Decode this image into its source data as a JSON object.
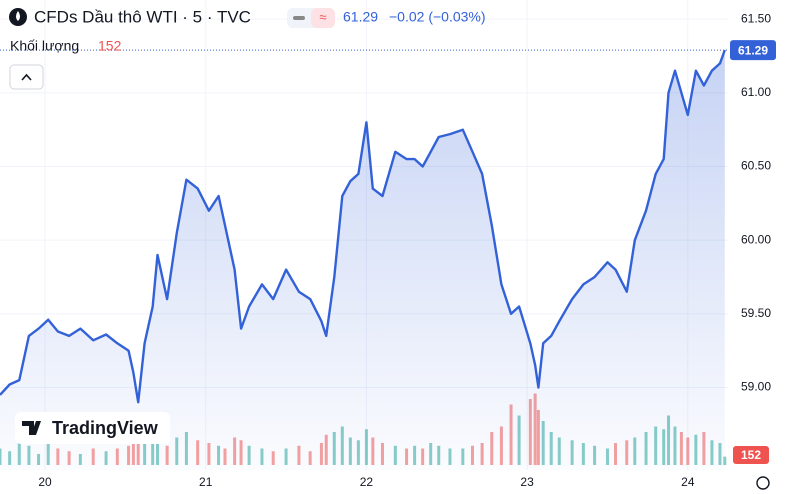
{
  "header": {
    "title": "CFDs Dầu thô WTI · 5 · TVC",
    "price": 61.29,
    "change": "−0.02 (−0.03%)",
    "volume_label": "Khối lượng",
    "volume": 152
  },
  "logo": "TradingView",
  "chart_data": {
    "type": "area",
    "x": [
      19.72,
      19.78,
      19.84,
      19.9,
      19.96,
      20.02,
      20.08,
      20.15,
      20.22,
      20.3,
      20.38,
      20.45,
      20.52,
      20.55,
      20.58,
      20.62,
      20.67,
      20.7,
      20.76,
      20.82,
      20.88,
      20.95,
      21.02,
      21.08,
      21.12,
      21.18,
      21.22,
      21.27,
      21.35,
      21.42,
      21.5,
      21.58,
      21.65,
      21.72,
      21.75,
      21.8,
      21.85,
      21.9,
      21.95,
      22.0,
      22.04,
      22.1,
      22.18,
      22.25,
      22.3,
      22.35,
      22.4,
      22.45,
      22.52,
      22.6,
      22.66,
      22.72,
      22.78,
      22.84,
      22.9,
      22.95,
      23.02,
      23.05,
      23.07,
      23.1,
      23.15,
      23.2,
      23.28,
      23.35,
      23.42,
      23.5,
      23.55,
      23.62,
      23.67,
      23.74,
      23.8,
      23.85,
      23.88,
      23.92,
      23.96,
      24.0,
      24.05,
      24.1,
      24.15,
      24.2,
      24.23
    ],
    "series": [
      {
        "color": "#3361d8",
        "values": [
          58.95,
          59.02,
          59.05,
          59.35,
          59.4,
          59.46,
          59.38,
          59.35,
          59.4,
          59.32,
          59.36,
          59.3,
          59.25,
          59.1,
          58.9,
          59.3,
          59.55,
          59.9,
          59.6,
          60.05,
          60.41,
          60.35,
          60.2,
          60.3,
          60.1,
          59.8,
          59.4,
          59.55,
          59.7,
          59.6,
          59.8,
          59.65,
          59.6,
          59.45,
          59.35,
          59.75,
          60.3,
          60.4,
          60.45,
          60.8,
          60.35,
          60.3,
          60.6,
          60.55,
          60.55,
          60.5,
          60.6,
          60.7,
          60.72,
          60.75,
          60.6,
          60.45,
          60.1,
          59.7,
          59.5,
          59.55,
          59.3,
          59.15,
          59.0,
          59.3,
          59.35,
          59.45,
          59.6,
          59.7,
          59.75,
          59.85,
          59.8,
          59.65,
          60.0,
          60.2,
          60.45,
          60.55,
          61.0,
          61.15,
          61.0,
          60.85,
          61.15,
          61.05,
          61.15,
          61.2,
          61.29
        ]
      }
    ],
    "volume": {
      "values": [
        300,
        250,
        400,
        350,
        200,
        450,
        300,
        250,
        200,
        300,
        250,
        300,
        350,
        400,
        600,
        500,
        450,
        700,
        350,
        500,
        600,
        450,
        400,
        350,
        300,
        500,
        450,
        350,
        300,
        250,
        300,
        350,
        250,
        400,
        550,
        600,
        700,
        500,
        450,
        650,
        500,
        400,
        350,
        300,
        350,
        300,
        400,
        350,
        300,
        300,
        350,
        400,
        600,
        700,
        1100,
        900,
        1200,
        1300,
        1000,
        800,
        600,
        500,
        450,
        400,
        350,
        300,
        400,
        450,
        500,
        600,
        700,
        650,
        900,
        700,
        600,
        500,
        550,
        600,
        450,
        400,
        152
      ],
      "ylim": [
        0,
        2000
      ],
      "up_color": "#26a69a",
      "down_color": "#ef5350"
    },
    "xlim": [
      19.72,
      24.25
    ],
    "xticks": [
      20,
      21,
      22,
      23,
      24
    ],
    "ylim": [
      58.44,
      61.63
    ],
    "yticks": [
      {
        "value": 59,
        "label": "59.00"
      },
      {
        "value": 59.5,
        "label": "59.50"
      },
      {
        "value": 60,
        "label": "60.00"
      },
      {
        "value": 60.5,
        "label": "60.50"
      },
      {
        "value": 61,
        "label": "61.00"
      },
      {
        "value": 61.5,
        "label": "61.50"
      }
    ],
    "grid": true
  }
}
